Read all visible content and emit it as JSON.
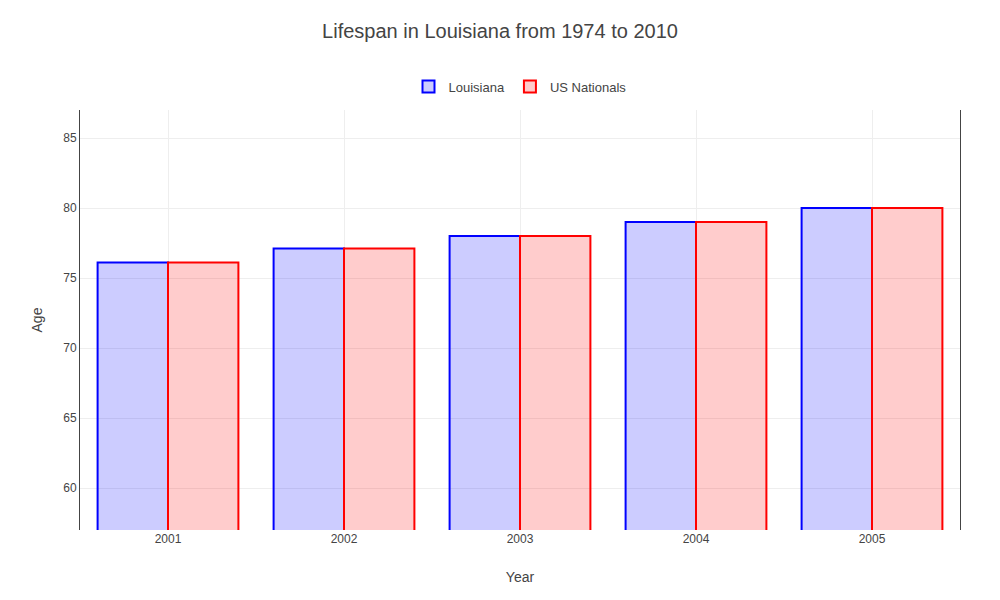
{
  "chart_data": {
    "type": "bar",
    "title": "Lifespan in Louisiana from 1974 to 2010",
    "xlabel": "Year",
    "ylabel": "Age",
    "categories": [
      "2001",
      "2002",
      "2003",
      "2004",
      "2005"
    ],
    "series": [
      {
        "name": "Louisiana",
        "color": "#0000ff",
        "values": [
          76.1,
          77.1,
          78.0,
          79.0,
          80.0
        ]
      },
      {
        "name": "US Nationals",
        "color": "#ff0000",
        "values": [
          76.1,
          77.1,
          78.0,
          79.0,
          80.0
        ]
      }
    ],
    "ylim": [
      57,
      87
    ],
    "yticks": [
      60,
      65,
      70,
      75,
      80,
      85
    ],
    "grid": true,
    "legend": "top"
  }
}
